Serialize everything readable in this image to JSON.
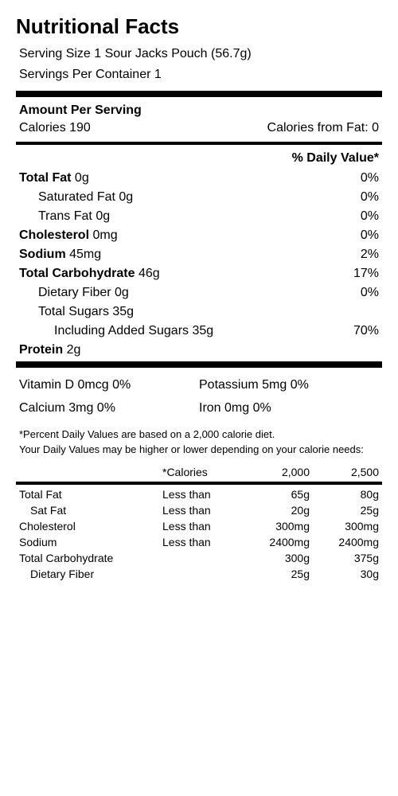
{
  "title": "Nutritional Facts",
  "serving_size": "Serving Size 1 Sour Jacks Pouch (56.7g)",
  "servings_per_container": "Servings Per Container 1",
  "amount_per_serving_label": "Amount Per Serving",
  "calories_label": "Calories 190",
  "calories_from_fat": "Calories from Fat: 0",
  "daily_value_header": "% Daily Value*",
  "nutrients": [
    {
      "label": "Total Fat",
      "amount": "0g",
      "dv": "0%",
      "bold": true,
      "indent": 0
    },
    {
      "label": "Saturated Fat",
      "amount": "0g",
      "dv": "0%",
      "bold": false,
      "indent": 1
    },
    {
      "label": "Trans Fat",
      "amount": "0g",
      "dv": "0%",
      "bold": false,
      "indent": 1
    },
    {
      "label": "Cholesterol",
      "amount": "0mg",
      "dv": "0%",
      "bold": true,
      "indent": 0
    },
    {
      "label": "Sodium",
      "amount": "45mg",
      "dv": "2%",
      "bold": true,
      "indent": 0
    },
    {
      "label": "Total Carbohydrate",
      "amount": "46g",
      "dv": "17%",
      "bold": true,
      "indent": 0
    },
    {
      "label": "Dietary Fiber",
      "amount": "0g",
      "dv": "0%",
      "bold": false,
      "indent": 1
    },
    {
      "label": "Total Sugars",
      "amount": "35g",
      "dv": "",
      "bold": false,
      "indent": 1
    },
    {
      "label": "Including Added Sugars",
      "amount": "35g",
      "dv": "70%",
      "bold": false,
      "indent": 2
    },
    {
      "label": "Protein",
      "amount": "2g",
      "dv": "",
      "bold": true,
      "indent": 0
    }
  ],
  "vitamins": {
    "left": [
      "Vitamin D 0mcg 0%",
      "Calcium 3mg 0%"
    ],
    "right": [
      "Potassium 5mg 0%",
      "Iron 0mg 0%"
    ]
  },
  "footnote1": "*Percent Daily Values are based on a 2,000 calorie diet.",
  "footnote2": "Your Daily Values may be higher or lower depending on your calorie needs:",
  "cal_headers": {
    "cal": "*Calories",
    "c2000": "2,000",
    "c2500": "2,500"
  },
  "reference": [
    {
      "name": "Total Fat",
      "qual": "Less than",
      "v1": "65g",
      "v2": "80g",
      "indent": false
    },
    {
      "name": "Sat Fat",
      "qual": "Less than",
      "v1": "20g",
      "v2": "25g",
      "indent": true
    },
    {
      "name": "Cholesterol",
      "qual": "Less than",
      "v1": "300mg",
      "v2": "300mg",
      "indent": false
    },
    {
      "name": "Sodium",
      "qual": "Less than",
      "v1": "2400mg",
      "v2": "2400mg",
      "indent": false
    },
    {
      "name": "Total Carbohydrate",
      "qual": "",
      "v1": "300g",
      "v2": "375g",
      "indent": false
    },
    {
      "name": "Dietary Fiber",
      "qual": "",
      "v1": "25g",
      "v2": "30g",
      "indent": true
    }
  ]
}
